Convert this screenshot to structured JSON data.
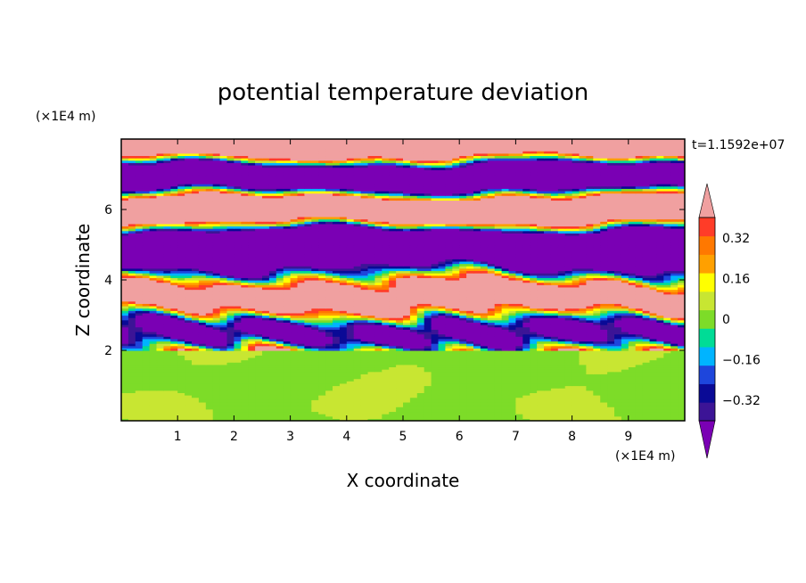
{
  "chart_data": {
    "type": "heatmap",
    "title": "potential temperature deviation",
    "xlabel": "X coordinate",
    "ylabel": "Z coordinate",
    "x_unit": "(×1E4 m)",
    "y_unit": "(×1E4 m)",
    "time_label": "t=1.1592e+07",
    "xlim": [
      0,
      10
    ],
    "ylim": [
      0,
      8
    ],
    "x_ticks": [
      1,
      2,
      3,
      4,
      5,
      6,
      7,
      8,
      9
    ],
    "y_ticks": [
      2,
      4,
      6
    ],
    "colorbar": {
      "levels": [
        -0.48,
        -0.4,
        -0.32,
        -0.24,
        -0.16,
        -0.08,
        0,
        0.08,
        0.16,
        0.24,
        0.32,
        0.4,
        0.48
      ],
      "tick_labels": [
        "0.32",
        "0.16",
        "0",
        "−0.16",
        "−0.32"
      ],
      "tick_values": [
        0.32,
        0.16,
        0,
        -0.16,
        -0.32
      ],
      "colors": [
        "#7a00b4",
        "#3c1496",
        "#0a0a96",
        "#1e46dc",
        "#00b4ff",
        "#00dc96",
        "#7ddc28",
        "#c8e632",
        "#ffff00",
        "#ffa000",
        "#ff7800",
        "#ff3c28",
        "#f0a0a0"
      ],
      "extend": "both"
    },
    "regions": {
      "lower_layer": {
        "z_range": [
          0,
          2
        ],
        "dominant_values": [
          0,
          0.04
        ],
        "description_colors": [
          "#7ddc28",
          "#00dc96"
        ]
      },
      "upper_layer": {
        "z_range": [
          2,
          8
        ],
        "banding": "horizontal alternating strong positive / strong negative layers"
      }
    }
  }
}
